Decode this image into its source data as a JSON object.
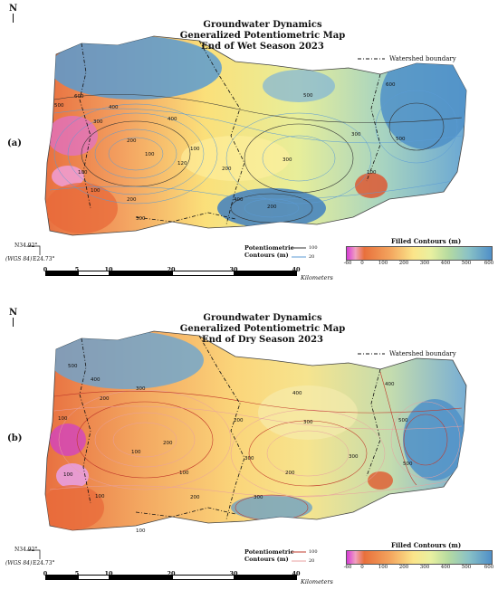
{
  "panels": [
    {
      "id": "a",
      "north_symbol": "N",
      "title_lines": [
        "Groundwater Dynamics",
        "Generalized Potentiometric Map",
        "End of Wet Season 2023"
      ],
      "panel_label": "(a)",
      "watershed_legend": "Watershed boundary",
      "coord_lat": "N34.92°",
      "coord_lon": "E24.73°",
      "coord_datum": "(WGS 84)",
      "potentiometric_label_1": "Potentiometric",
      "potentiometric_label_2": "Contours (m)",
      "contour_major_value": "100",
      "contour_minor_value": "20",
      "contour_major_color": "#333333",
      "contour_minor_color": "#5b9bd5",
      "filled_contours_title": "Filled Contours (m)",
      "filled_ticks": [
        "-60",
        "0",
        "100",
        "200",
        "300",
        "400",
        "500",
        "600"
      ],
      "km_ticks": [
        "0",
        "5",
        "10",
        "20",
        "30",
        "40"
      ],
      "km_unit": "Kilometers",
      "contour_labels": [
        "600",
        "500",
        "400",
        "300",
        "200",
        "100",
        "120",
        "200",
        "100",
        "300",
        "400",
        "500",
        "200",
        "100",
        "300",
        "500",
        "400",
        "600",
        "100",
        "200",
        "300",
        "100"
      ]
    },
    {
      "id": "b",
      "north_symbol": "N",
      "title_lines": [
        "Groundwater Dynamics",
        "Generalized Potentiometric Map",
        "End of Dry Season 2023"
      ],
      "panel_label": "(b)",
      "watershed_legend": "Watershed boundary",
      "coord_lat": "N34.92°",
      "coord_lon": "E24.73°",
      "coord_datum": "(WGS 84)",
      "potentiometric_label_1": "Potentiometric",
      "potentiometric_label_2": "Contours (m)",
      "contour_major_value": "100",
      "contour_minor_value": "20",
      "contour_major_color": "#c0392b",
      "contour_minor_color": "#e8a0a0",
      "filled_contours_title": "Filled Contours (m)",
      "filled_ticks": [
        "-60",
        "0",
        "100",
        "200",
        "300",
        "400",
        "500",
        "600"
      ],
      "km_ticks": [
        "0",
        "5",
        "10",
        "20",
        "30",
        "40"
      ],
      "km_unit": "Kilometers",
      "contour_labels": [
        "100",
        "200",
        "300",
        "400",
        "500",
        "100",
        "200",
        "300",
        "100",
        "200",
        "300",
        "400",
        "500",
        "200",
        "100",
        "300",
        "200",
        "100",
        "300",
        "400",
        "500",
        "100"
      ]
    }
  ]
}
